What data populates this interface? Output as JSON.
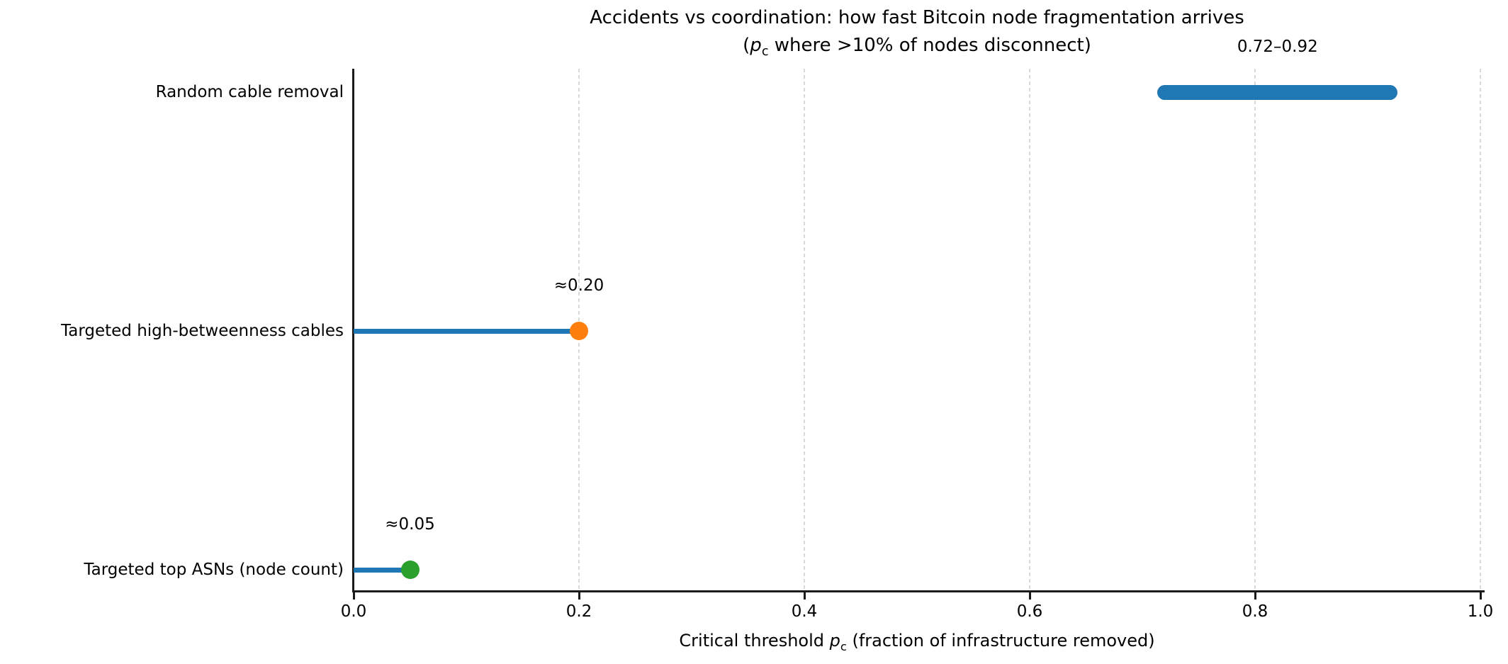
{
  "figure": {
    "title_line1": "Accidents vs coordination: how fast Bitcoin node fragmentation arrives",
    "title_line2": {
      "pre": "(",
      "var": "p",
      "sub": "c",
      "post": " where >10% of nodes disconnect)"
    },
    "xlabel": {
      "pre": "Critical threshold ",
      "var": "p",
      "sub": "c",
      "post": " (fraction of infrastructure removed)"
    },
    "background_color": "#ffffff",
    "text_color": "#000000",
    "spine_color": "#1a1a1a",
    "grid_color": "#d9d9d9"
  },
  "chart_data": {
    "type": "bar",
    "subtype": "horizontal lollipop with one range bar",
    "title": "Accidents vs coordination: how fast Bitcoin node fragmentation arrives\n(p_c where >10% of nodes disconnect)",
    "xlabel": "Critical threshold p_c (fraction of infrastructure removed)",
    "ylabel": "",
    "xlim": [
      0.0,
      1.0
    ],
    "grid": {
      "axis": "x",
      "style": "dashed",
      "at": [
        0.2,
        0.4,
        0.6,
        0.8,
        1.0
      ]
    },
    "legend": "none",
    "xticks": [
      {
        "value": 0.0,
        "label": "0.0"
      },
      {
        "value": 0.2,
        "label": "0.2"
      },
      {
        "value": 0.4,
        "label": "0.4"
      },
      {
        "value": 0.6,
        "label": "0.6"
      },
      {
        "value": 0.8,
        "label": "0.8"
      },
      {
        "value": 1.0,
        "label": "1.0"
      }
    ],
    "categories": [
      "Random cable removal",
      "Targeted high-betweenness cables",
      "Targeted top ASNs (node count)"
    ],
    "rows": [
      {
        "category": "Random cable removal",
        "type": "range",
        "low": 0.72,
        "high": 0.92,
        "color": "#1f77b4",
        "annotation": "0.72–0.92"
      },
      {
        "category": "Targeted high-betweenness cables",
        "type": "point",
        "value": 0.2,
        "stem_from": 0.0,
        "stem_color": "#1f77b4",
        "marker_color": "#ff7f0e",
        "annotation": "≈0.20"
      },
      {
        "category": "Targeted top ASNs (node count)",
        "type": "point",
        "value": 0.05,
        "stem_from": 0.0,
        "stem_color": "#1f77b4",
        "marker_color": "#2ca02c",
        "annotation": "≈0.05"
      }
    ]
  }
}
